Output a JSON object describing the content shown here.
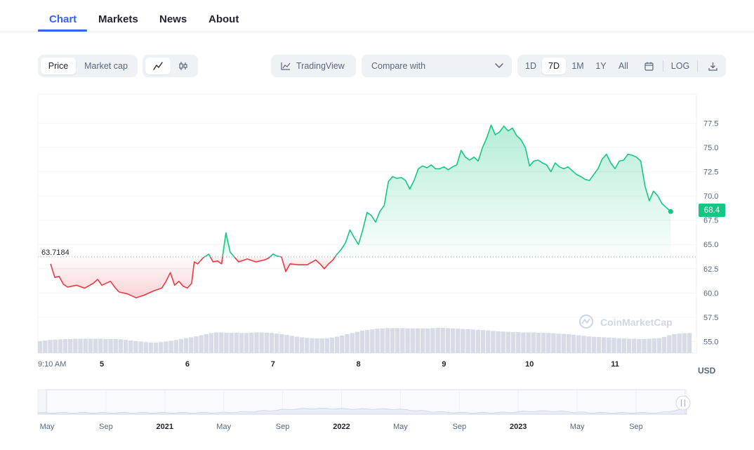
{
  "tabs": [
    {
      "label": "Chart",
      "active": true
    },
    {
      "label": "Markets",
      "active": false
    },
    {
      "label": "News",
      "active": false
    },
    {
      "label": "About",
      "active": false
    }
  ],
  "toolbar": {
    "metric_options": [
      "Price",
      "Market cap"
    ],
    "metric_selected": "Price",
    "chart_style_icons": [
      "line-chart-icon",
      "candlestick-icon"
    ],
    "tradingview_label": "TradingView",
    "compare_label": "Compare with",
    "ranges": [
      "1D",
      "7D",
      "1M",
      "1Y",
      "All"
    ],
    "range_selected": "7D",
    "log_label": "LOG"
  },
  "colors": {
    "up": "#16c784",
    "down": "#ea3943",
    "accent": "#3861fb",
    "volume": "#cfd6e4"
  },
  "chart_data": {
    "type": "area",
    "baseline": 63.7184,
    "baseline_label": "63.7184",
    "last_price_label": "68.4",
    "currency": "USD",
    "watermark": "CoinMarketCap",
    "yticks": [
      "77.5",
      "75.0",
      "72.5",
      "70.0",
      "67.5",
      "65.0",
      "62.5",
      "60.0",
      "57.5",
      "55.0"
    ],
    "ylim": [
      53.8,
      80.5
    ],
    "xlim": [
      0,
      10
    ],
    "xticks": [
      {
        "label": "9:10 AM",
        "x": 0.0
      },
      {
        "label": "5",
        "x": 0.6
      },
      {
        "label": "6",
        "x": 1.6
      },
      {
        "label": "7",
        "x": 2.6
      },
      {
        "label": "8",
        "x": 3.6
      },
      {
        "label": "9",
        "x": 4.6
      },
      {
        "label": "10",
        "x": 5.6
      },
      {
        "label": "11",
        "x": 6.6
      }
    ],
    "series": [
      {
        "name": "Price",
        "points": [
          [
            0.0,
            63.0
          ],
          [
            0.05,
            61.6
          ],
          [
            0.1,
            61.7
          ],
          [
            0.15,
            60.9
          ],
          [
            0.2,
            60.6
          ],
          [
            0.3,
            60.8
          ],
          [
            0.4,
            60.5
          ],
          [
            0.5,
            61.0
          ],
          [
            0.55,
            61.4
          ],
          [
            0.6,
            60.8
          ],
          [
            0.7,
            61.2
          ],
          [
            0.75,
            60.6
          ],
          [
            0.8,
            60.1
          ],
          [
            0.9,
            59.9
          ],
          [
            1.0,
            59.5
          ],
          [
            1.1,
            59.8
          ],
          [
            1.2,
            60.2
          ],
          [
            1.3,
            60.5
          ],
          [
            1.35,
            61.2
          ],
          [
            1.4,
            62.1
          ],
          [
            1.45,
            60.8
          ],
          [
            1.5,
            61.2
          ],
          [
            1.55,
            60.7
          ],
          [
            1.6,
            60.5
          ],
          [
            1.65,
            61.0
          ],
          [
            1.68,
            63.2
          ],
          [
            1.72,
            63.0
          ],
          [
            1.78,
            63.6
          ],
          [
            1.85,
            64.0
          ],
          [
            1.9,
            63.2
          ],
          [
            1.95,
            63.3
          ],
          [
            2.0,
            63.0
          ],
          [
            2.05,
            66.2
          ],
          [
            2.1,
            64.2
          ],
          [
            2.15,
            63.7
          ],
          [
            2.2,
            63.2
          ],
          [
            2.3,
            63.5
          ],
          [
            2.4,
            63.2
          ],
          [
            2.5,
            63.4
          ],
          [
            2.55,
            63.6
          ],
          [
            2.6,
            64.0
          ],
          [
            2.65,
            63.8
          ],
          [
            2.7,
            63.7
          ],
          [
            2.75,
            62.2
          ],
          [
            2.8,
            63.0
          ],
          [
            2.9,
            62.9
          ],
          [
            3.0,
            62.9
          ],
          [
            3.1,
            63.4
          ],
          [
            3.15,
            63.0
          ],
          [
            3.2,
            62.5
          ],
          [
            3.25,
            63.0
          ],
          [
            3.3,
            63.4
          ],
          [
            3.35,
            64.0
          ],
          [
            3.4,
            64.5
          ],
          [
            3.45,
            65.2
          ],
          [
            3.5,
            66.5
          ],
          [
            3.55,
            65.7
          ],
          [
            3.6,
            65.0
          ],
          [
            3.65,
            66.5
          ],
          [
            3.7,
            68.3
          ],
          [
            3.75,
            68.0
          ],
          [
            3.8,
            67.3
          ],
          [
            3.85,
            68.4
          ],
          [
            3.9,
            69.0
          ],
          [
            3.95,
            71.5
          ],
          [
            4.0,
            72.0
          ],
          [
            4.05,
            71.8
          ],
          [
            4.1,
            71.9
          ],
          [
            4.15,
            71.6
          ],
          [
            4.2,
            70.7
          ],
          [
            4.25,
            71.6
          ],
          [
            4.3,
            72.8
          ],
          [
            4.35,
            73.1
          ],
          [
            4.4,
            72.9
          ],
          [
            4.45,
            73.2
          ],
          [
            4.5,
            72.8
          ],
          [
            4.55,
            72.8
          ],
          [
            4.6,
            73.0
          ],
          [
            4.65,
            72.7
          ],
          [
            4.7,
            73.0
          ],
          [
            4.75,
            73.2
          ],
          [
            4.8,
            74.7
          ],
          [
            4.85,
            74.0
          ],
          [
            4.9,
            73.7
          ],
          [
            4.95,
            74.0
          ],
          [
            5.0,
            73.6
          ],
          [
            5.05,
            75.0
          ],
          [
            5.1,
            76.0
          ],
          [
            5.15,
            77.3
          ],
          [
            5.2,
            76.3
          ],
          [
            5.25,
            76.6
          ],
          [
            5.3,
            77.2
          ],
          [
            5.35,
            76.7
          ],
          [
            5.4,
            77.0
          ],
          [
            5.45,
            76.2
          ],
          [
            5.5,
            75.8
          ],
          [
            5.55,
            75.0
          ],
          [
            5.6,
            73.1
          ],
          [
            5.65,
            73.6
          ],
          [
            5.7,
            73.7
          ],
          [
            5.75,
            73.4
          ],
          [
            5.8,
            73.2
          ],
          [
            5.85,
            72.5
          ],
          [
            5.9,
            73.4
          ],
          [
            5.95,
            73.0
          ],
          [
            6.0,
            72.8
          ],
          [
            6.05,
            73.0
          ],
          [
            6.1,
            72.6
          ],
          [
            6.15,
            72.2
          ],
          [
            6.2,
            72.0
          ],
          [
            6.25,
            71.7
          ],
          [
            6.3,
            71.6
          ],
          [
            6.35,
            72.2
          ],
          [
            6.4,
            72.8
          ],
          [
            6.45,
            73.8
          ],
          [
            6.5,
            74.3
          ],
          [
            6.55,
            73.4
          ],
          [
            6.6,
            72.8
          ],
          [
            6.65,
            73.6
          ],
          [
            6.7,
            73.7
          ],
          [
            6.75,
            74.3
          ],
          [
            6.8,
            74.2
          ],
          [
            6.85,
            74.0
          ],
          [
            6.9,
            73.6
          ],
          [
            6.95,
            71.0
          ],
          [
            7.0,
            69.5
          ],
          [
            7.05,
            70.5
          ],
          [
            7.1,
            70.0
          ],
          [
            7.15,
            69.2
          ],
          [
            7.2,
            68.8
          ],
          [
            7.25,
            68.4
          ]
        ]
      }
    ],
    "volume": [
      0.42,
      0.44,
      0.46,
      0.47,
      0.48,
      0.49,
      0.49,
      0.5,
      0.5,
      0.5,
      0.5,
      0.5,
      0.5,
      0.49,
      0.49,
      0.49,
      0.48,
      0.46,
      0.44,
      0.42,
      0.4,
      0.38,
      0.37,
      0.37,
      0.38,
      0.4,
      0.43,
      0.46,
      0.49,
      0.52,
      0.55,
      0.58,
      0.62,
      0.66,
      0.7,
      0.72,
      0.72,
      0.71,
      0.71,
      0.71,
      0.7,
      0.7,
      0.71,
      0.72,
      0.72,
      0.71,
      0.7,
      0.68,
      0.66,
      0.63,
      0.6,
      0.57,
      0.55,
      0.53,
      0.52,
      0.51,
      0.51,
      0.52,
      0.54,
      0.57,
      0.61,
      0.66,
      0.7,
      0.74,
      0.78,
      0.81,
      0.83,
      0.85,
      0.86,
      0.87,
      0.87,
      0.87,
      0.87,
      0.86,
      0.86,
      0.86,
      0.86,
      0.86,
      0.87,
      0.88,
      0.88,
      0.87,
      0.86,
      0.85,
      0.84,
      0.83,
      0.82,
      0.81,
      0.8,
      0.79,
      0.77,
      0.76,
      0.75,
      0.74,
      0.73,
      0.73,
      0.72,
      0.72,
      0.72,
      0.71,
      0.71,
      0.7,
      0.69,
      0.68,
      0.67,
      0.66,
      0.64,
      0.62,
      0.6,
      0.58,
      0.57,
      0.56,
      0.55,
      0.54,
      0.53,
      0.52,
      0.51,
      0.5,
      0.5,
      0.49,
      0.49,
      0.5,
      0.51,
      0.52,
      0.56,
      0.62,
      0.66,
      0.68,
      0.69,
      0.7
    ]
  },
  "navigator": {
    "labels": [
      {
        "label": "May",
        "bold": false
      },
      {
        "label": "Sep",
        "bold": false
      },
      {
        "label": "2021",
        "bold": true
      },
      {
        "label": "May",
        "bold": false
      },
      {
        "label": "Sep",
        "bold": false
      },
      {
        "label": "2022",
        "bold": true
      },
      {
        "label": "May",
        "bold": false
      },
      {
        "label": "Sep",
        "bold": false
      },
      {
        "label": "2023",
        "bold": true
      },
      {
        "label": "May",
        "bold": false
      },
      {
        "label": "Sep",
        "bold": false
      }
    ]
  }
}
